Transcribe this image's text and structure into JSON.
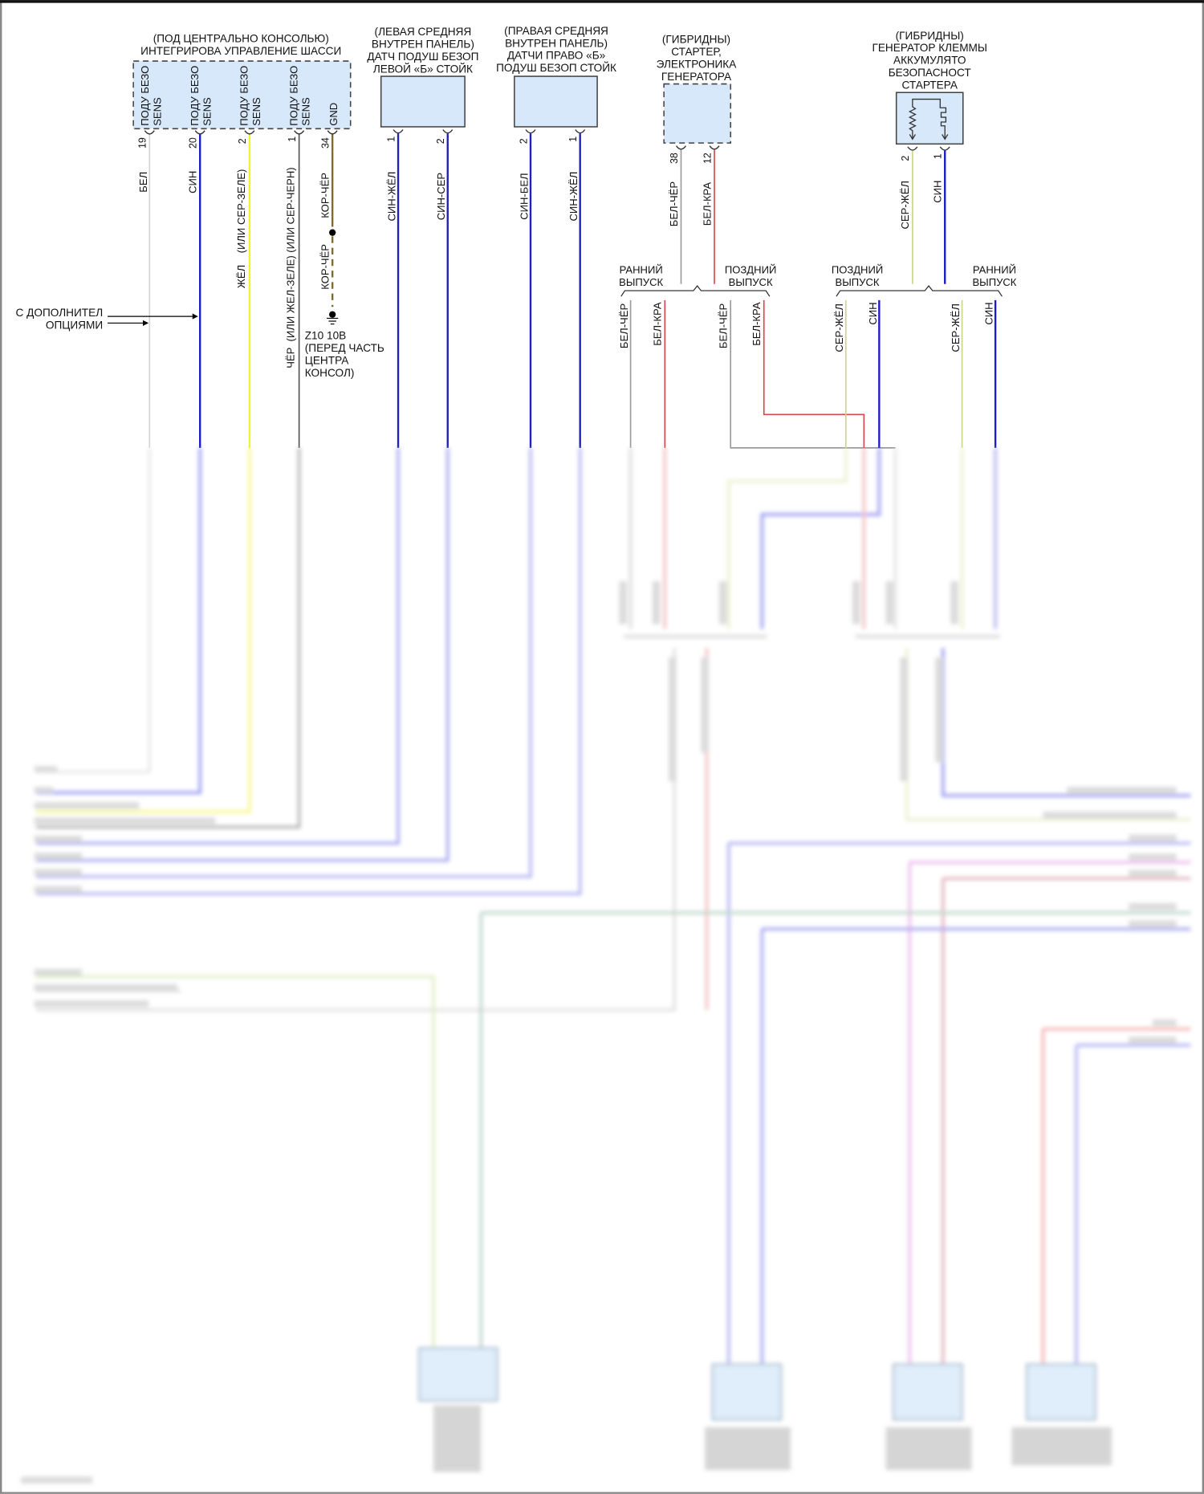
{
  "colors": {
    "white_wire": "#d4d4d4",
    "blue_wire": "#1c1cc8",
    "yellow_wire": "#f2f226",
    "black_wire": "#555555",
    "brown_wire": "#7d6b2f",
    "gray_wire": "#9a9a9a",
    "red_wire": "#d84848",
    "gray_yellow_wire": "#cdd58a",
    "box_fill": "#d6e8fa"
  },
  "module_chassis": {
    "title": [
      "(ПОД ЦЕНТРАЛЬНО КОНСОЛЬЮ)",
      "ИНТЕГРИРОВА УПРАВЛЕНИЕ ШАССИ"
    ],
    "pin_funcs": [
      {
        "line1": "ПОДУ БЕЗО",
        "line2": "SENS"
      },
      {
        "line1": "ПОДУ БЕЗО",
        "line2": "SENS"
      },
      {
        "line1": "ПОДУ БЕЗО",
        "line2": "SENS"
      },
      {
        "line1": "ПОДУ БЕЗО",
        "line2": "SENS"
      },
      {
        "line1": "GND"
      }
    ],
    "pins": [
      "19",
      "20",
      "2",
      "1",
      "34"
    ],
    "wires": [
      "БЕЛ",
      "СИН",
      "ЖЁЛ    (ИЛИ СЕР-ЗЕЛЕ)",
      "ЧЁР  (ИЛИ ЖЕЛ-ЗЕЛЕ) (ИЛИ СЕР-ЧЕРН)",
      "КОР-ЧЁР",
      "КОР-ЧЁР"
    ]
  },
  "module_left_sensor": {
    "title": [
      "(ЛЕВАЯ СРЕДНЯЯ",
      "ВНУТРЕН ПАНЕЛЬ)",
      "ДАТЧ ПОДУШ БЕЗОП",
      "ЛЕВОЙ «Б» СТОЙК"
    ],
    "pins": [
      "1",
      "2"
    ],
    "wires": [
      "СИН-ЖЁЛ",
      "СИН-СЕР"
    ]
  },
  "module_right_sensor": {
    "title": [
      "(ПРАВАЯ СРЕДНЯЯ",
      "ВНУТРЕН ПАНЕЛЬ)",
      "ДАТЧИ ПРАВО «Б»",
      "ПОДУШ БЕЗОП СТОЙК"
    ],
    "pins": [
      "2",
      "1"
    ],
    "wires": [
      "СИН-БЕЛ",
      "СИН-ЖЁЛ"
    ]
  },
  "module_starter": {
    "title": [
      "(ГИБРИДНЫ)",
      "СТАРТЕР,",
      "ЭЛЕКТРОНИКА",
      "ГЕНЕРАТОРА"
    ],
    "pins": [
      "38",
      "12"
    ],
    "wires": [
      "БЕЛ-ЧЁР",
      "БЕЛ-КРА"
    ],
    "split_labels": [
      "РАННИЙ ВЫПУСК",
      "ПОЗДНИЙ ВЫПУСК"
    ],
    "split_wires": [
      "БЕЛ-ЧЁР",
      "БЕЛ-КРА",
      "БЕЛ-ЧЁР",
      "БЕЛ-КРА"
    ]
  },
  "module_battery_terminal": {
    "title": [
      "(ГИБРИДНЫ)",
      "ГЕНЕРАТОР КЛЕММЫ",
      "АККУМУЛЯТО",
      "БЕЗОПАСНОСТ",
      "СТАРТЕРА"
    ],
    "pins": [
      "2",
      "1"
    ],
    "wires": [
      "СЕР-ЖЁЛ",
      "СИН"
    ],
    "split_labels": [
      "ПОЗДНИЙ ВЫПУСК",
      "РАННИЙ ВЫПУСК"
    ],
    "split_wires": [
      "СЕР-ЖЁЛ",
      "СИН",
      "СЕР-ЖЁЛ",
      "СИН"
    ]
  },
  "notes": {
    "options": [
      "С ДОПОЛНИТЕЛ",
      "ОПЦИЯМИ"
    ],
    "ground": [
      "Z10 10B",
      "(ПЕРЕД ЧАСТЬ",
      "ЦЕНТРА",
      "КОНСОЛ)"
    ]
  }
}
